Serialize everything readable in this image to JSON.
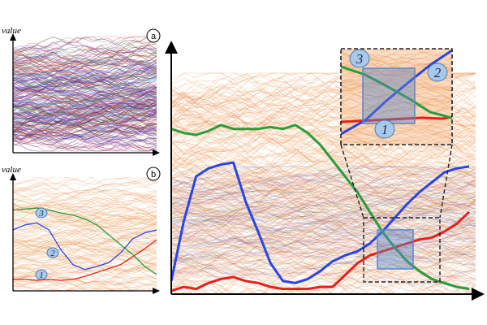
{
  "labels": {
    "value_a": "value",
    "value_b": "value"
  },
  "panels": {
    "a": "a",
    "b": "b"
  },
  "badges": {
    "one": "1",
    "two": "2",
    "three": "3"
  },
  "colors": {
    "series_1": "#e8201b",
    "series_2": "#2b45e0",
    "series_3": "#2a9c3a",
    "background_lines": "#f5a458",
    "badge_fill": "#a9c9e8",
    "badge_stroke": "#4a7fb5",
    "highlight_box": "#5a86c5"
  },
  "chart_data": [
    {
      "type": "line",
      "panel": "a",
      "title": "",
      "xlabel": "",
      "ylabel": "value",
      "background": "many overlapping multicolored time series",
      "series": []
    },
    {
      "type": "line",
      "panel": "b",
      "title": "",
      "xlabel": "",
      "ylabel": "value",
      "x": [
        0,
        1,
        2,
        3,
        4,
        5,
        6,
        7,
        8,
        9,
        10,
        11,
        12
      ],
      "series": [
        {
          "name": "1",
          "values": [
            0.05,
            0.05,
            0.04,
            0.05,
            0.04,
            0.05,
            0.08,
            0.12,
            0.16,
            0.2,
            0.28,
            0.36,
            0.45
          ]
        },
        {
          "name": "2",
          "values": [
            0.55,
            0.6,
            0.62,
            0.55,
            0.35,
            0.2,
            0.15,
            0.18,
            0.22,
            0.32,
            0.46,
            0.52,
            0.55
          ]
        },
        {
          "name": "3",
          "values": [
            0.75,
            0.76,
            0.77,
            0.75,
            0.72,
            0.7,
            0.66,
            0.6,
            0.5,
            0.4,
            0.3,
            0.18,
            0.1
          ]
        }
      ]
    },
    {
      "type": "line",
      "panel": "main",
      "title": "",
      "xlabel": "",
      "ylabel": "",
      "x": [
        0,
        1,
        2,
        3,
        4,
        5,
        6,
        7,
        8,
        9,
        10,
        11,
        12,
        13,
        14,
        15,
        16,
        17,
        18,
        19,
        20,
        21,
        22,
        23,
        24
      ],
      "series": [
        {
          "name": "1",
          "values": [
            0.0,
            0.02,
            0.01,
            0.04,
            0.06,
            0.07,
            0.05,
            0.04,
            0.02,
            0.01,
            0.01,
            0.01,
            0.02,
            0.02,
            0.08,
            0.14,
            0.18,
            0.2,
            0.22,
            0.24,
            0.26,
            0.27,
            0.3,
            0.34,
            0.4
          ]
        },
        {
          "name": "2",
          "values": [
            0.05,
            0.35,
            0.58,
            0.62,
            0.64,
            0.65,
            0.45,
            0.3,
            0.14,
            0.05,
            0.04,
            0.06,
            0.1,
            0.15,
            0.18,
            0.2,
            0.24,
            0.3,
            0.37,
            0.44,
            0.5,
            0.55,
            0.6,
            0.62,
            0.63
          ]
        },
        {
          "name": "3",
          "values": [
            0.82,
            0.8,
            0.79,
            0.81,
            0.84,
            0.82,
            0.82,
            0.82,
            0.83,
            0.82,
            0.84,
            0.8,
            0.74,
            0.66,
            0.58,
            0.5,
            0.4,
            0.3,
            0.22,
            0.15,
            0.1,
            0.06,
            0.04,
            0.02,
            0.01
          ]
        }
      ]
    }
  ]
}
